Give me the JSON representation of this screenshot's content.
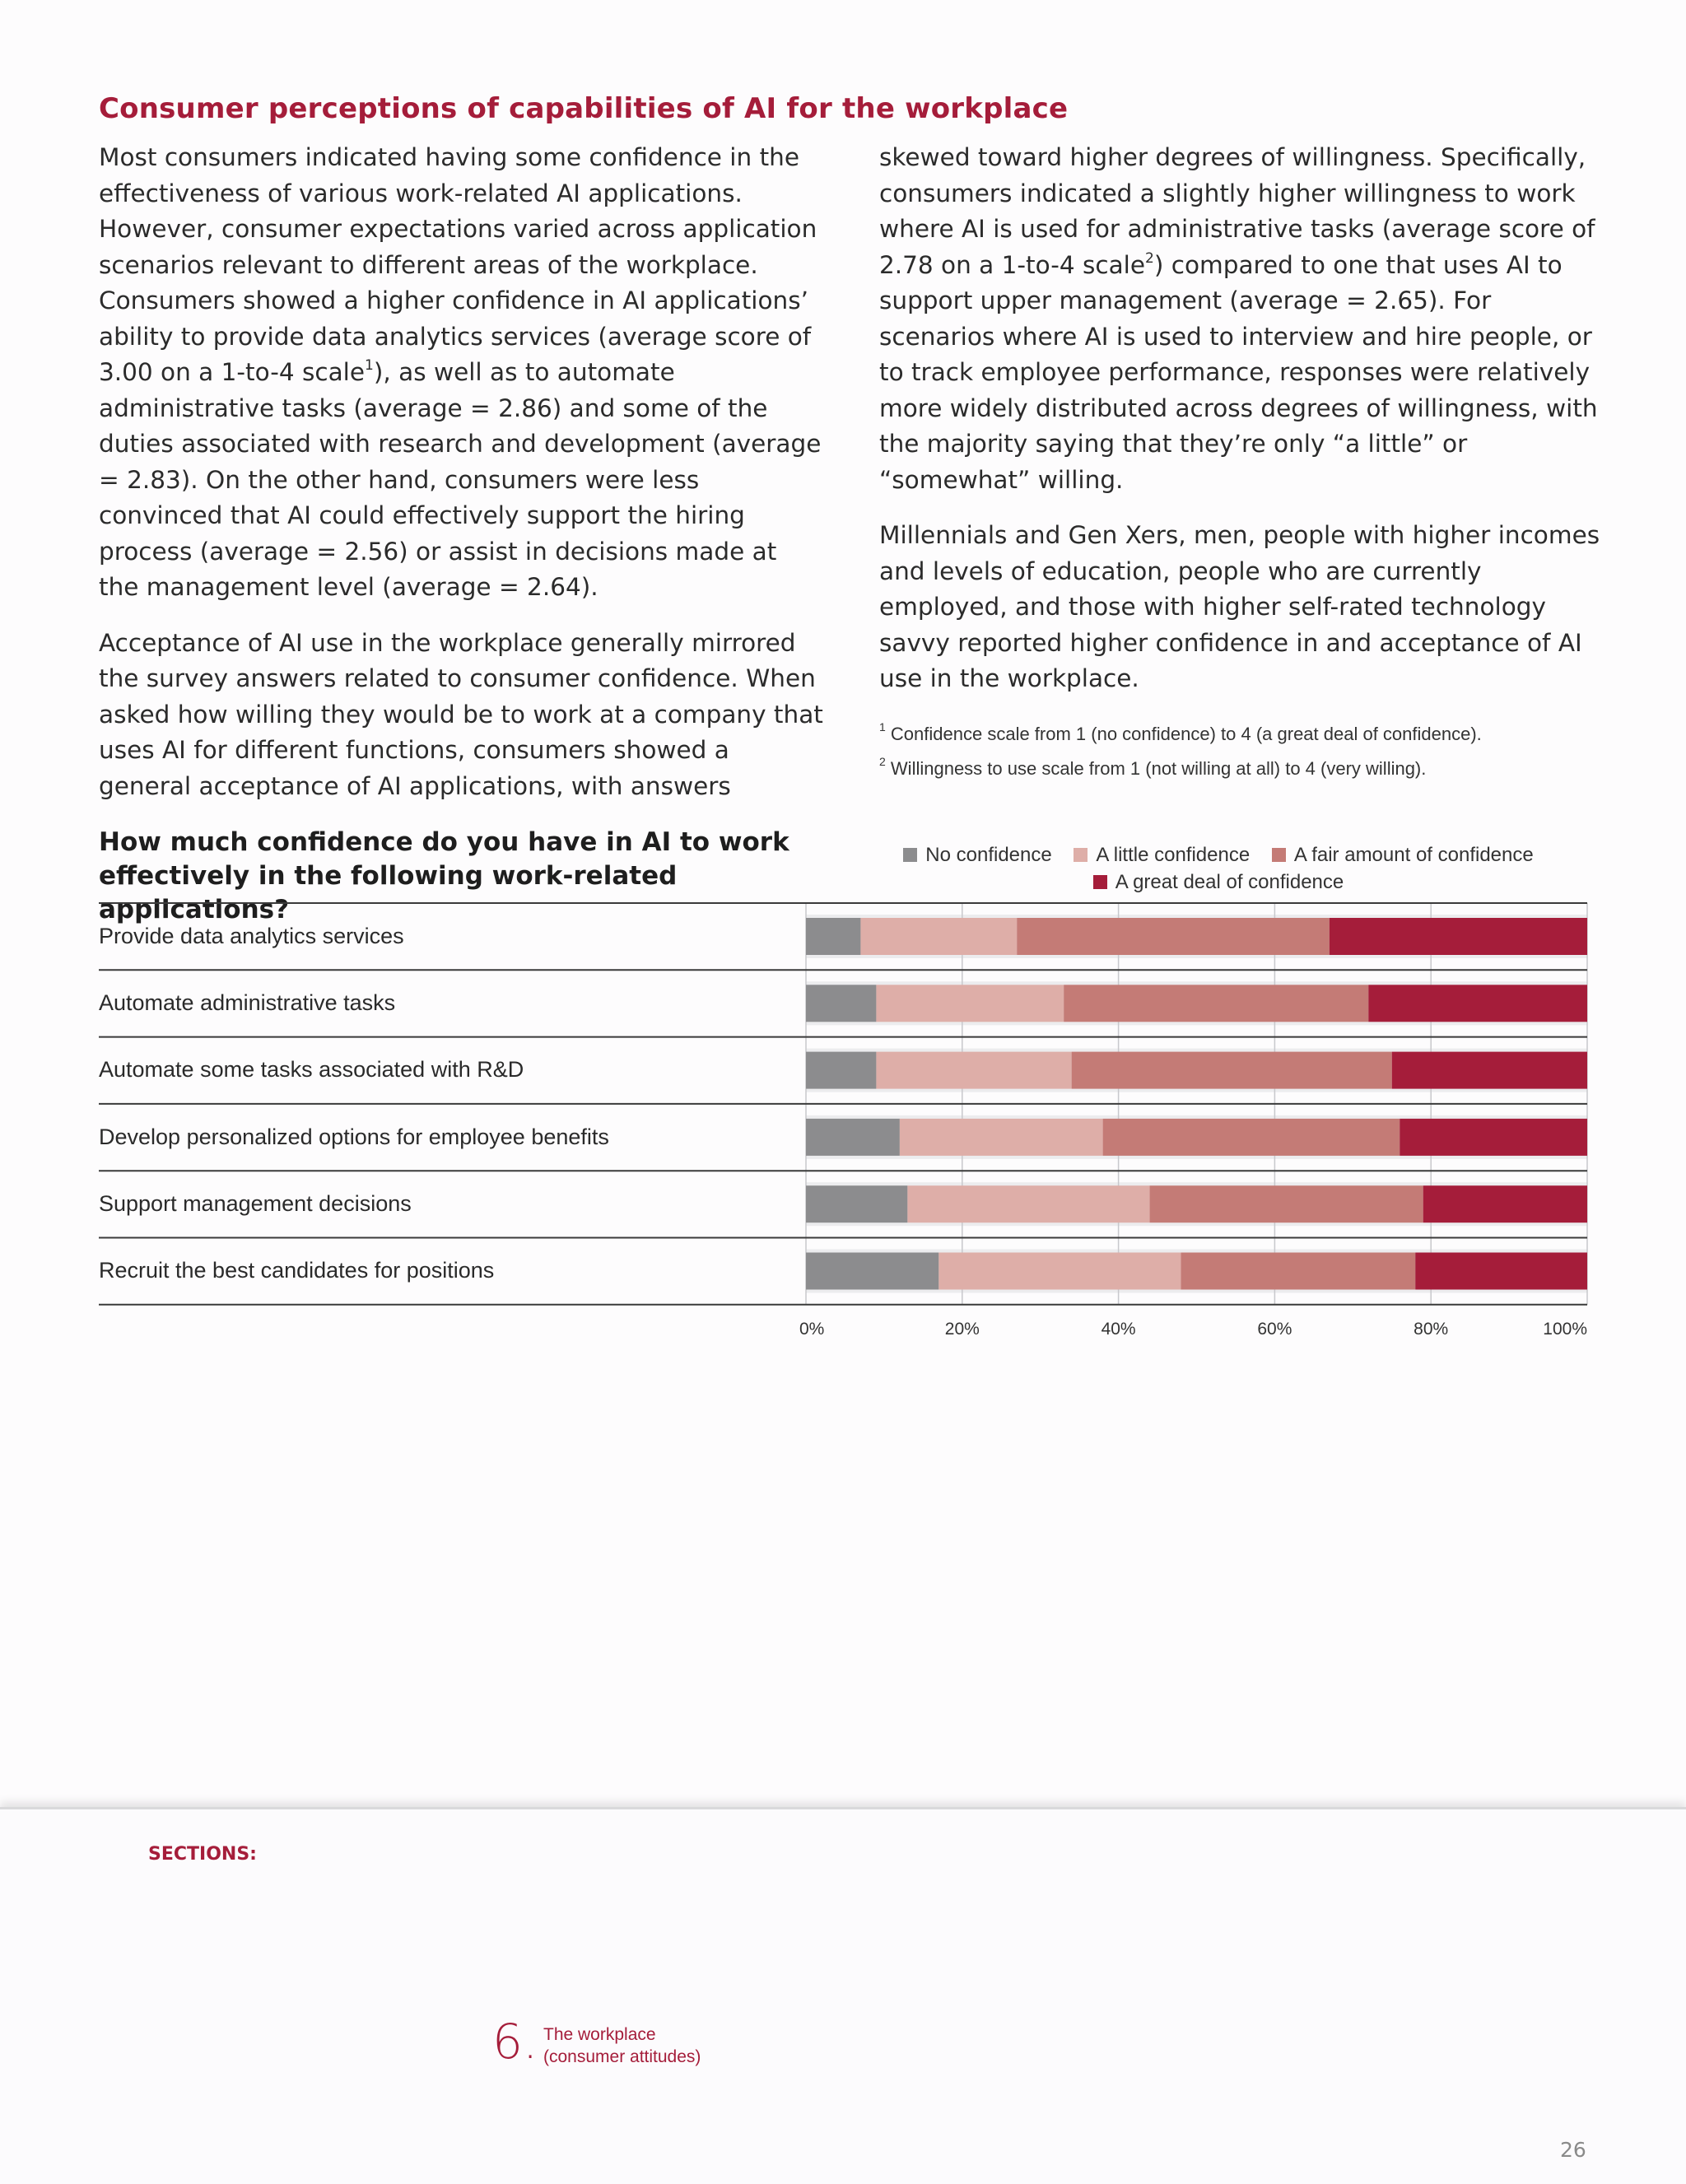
{
  "heading": "Consumer perceptions of capabilities of AI for the workplace",
  "body": {
    "left_p1_a": "Most consumers indicated having some confidence in the effectiveness of various work-related AI applications. However, consumer expectations varied across application scenarios relevant to different areas of the workplace. Consumers showed a higher confidence in AI applications’ ability to provide data analytics services (average score of 3.00 on a 1-to-4 scale",
    "left_p1_sup": "1",
    "left_p1_b": "), as well as to automate administrative tasks (average = 2.86) and some of the duties associated with research and development (average = 2.83). On the other hand, consumers were less convinced that AI could effectively support the hiring process (average = 2.56) or assist in decisions made at the management level (average = 2.64).",
    "left_p2": "Acceptance of AI use in the workplace generally mirrored the survey answers related to consumer confidence. When asked how willing they would be to work at a company that uses AI for different functions, consumers showed a general acceptance of AI applications, with answers",
    "right_p1_a": "skewed toward higher degrees of willingness. Specifically, consumers indicated a slightly higher willingness to work where AI is used for administrative tasks (average score of 2.78 on a 1-to-4 scale",
    "right_p1_sup": "2",
    "right_p1_b": ") compared to one that uses AI to support upper management (average = 2.65). For scenarios where AI is used to interview and hire people, or to track employee performance, responses were relatively more widely distributed across degrees of willingness, with the majority saying that they’re only “a little” or “somewhat” willing.",
    "right_p2": "Millennials and Gen Xers, men, people with higher incomes and levels of education, people who are currently employed, and those with higher self-rated technology savvy reported higher confidence in and acceptance of AI use in the workplace.",
    "footnote1_num": "1",
    "footnote1": "Confidence scale from 1 (no confidence) to 4 (a great deal of confidence).",
    "footnote2_num": "2",
    "footnote2": "Willingness to use scale from 1 (not willing at all) to 4 (very willing)."
  },
  "chart_data": {
    "type": "bar",
    "orientation": "horizontal-stacked-100",
    "title": "How much confidence do you have in AI to work effectively in the following work-related applications?",
    "categories": [
      "Provide data analytics services",
      "Automate administrative tasks",
      "Automate some tasks associated with R&D",
      "Develop personalized options for employee benefits",
      "Support management decisions",
      "Recruit the best candidates for positions"
    ],
    "series": [
      {
        "name": "No confidence",
        "color": "#8c8c8e",
        "values": [
          7,
          9,
          9,
          12,
          13,
          17
        ]
      },
      {
        "name": "A little confidence",
        "color": "#deaea8",
        "values": [
          20,
          24,
          25,
          26,
          31,
          31
        ]
      },
      {
        "name": "A fair amount of confidence",
        "color": "#c47b76",
        "values": [
          40,
          39,
          41,
          38,
          35,
          30
        ]
      },
      {
        "name": "A great deal of confidence",
        "color": "#a51d3a",
        "values": [
          33,
          28,
          25,
          24,
          21,
          22
        ]
      }
    ],
    "xticks": [
      "0%",
      "20%",
      "40%",
      "60%",
      "80%",
      "100%"
    ],
    "xlim": [
      0,
      100
    ],
    "grid": true,
    "legend_position": "top"
  },
  "footer": {
    "sections_label": "SECTIONS:",
    "section_number": "6.",
    "section_title_line1": "The workplace",
    "section_title_line2": "(consumer attitudes)",
    "page_number": "26"
  }
}
